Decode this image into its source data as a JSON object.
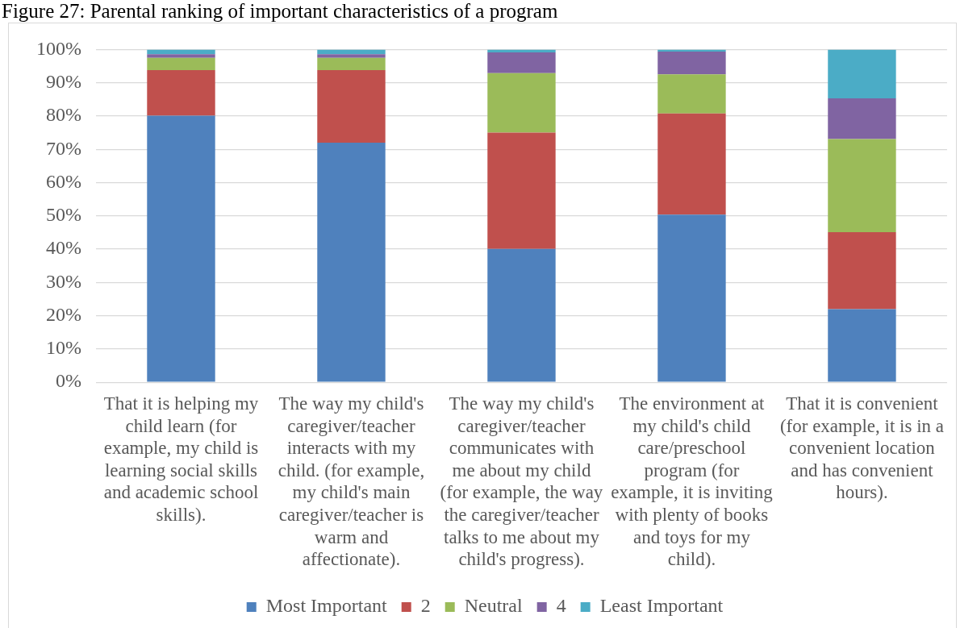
{
  "chart_data": {
    "type": "bar",
    "title": "Figure 27: Parental ranking of important characteristics of a program",
    "categories": [
      "That it is helping my child learn (for example, my child is learning social skills and academic school skills).",
      "The way my child's caregiver/teacher interacts with my child. (for example, my child's main caregiver/teacher is warm and affectionate).",
      "The way my child's caregiver/teacher communicates with me about my child (for example, the way the caregiver/teacher talks to me about my child's progress).",
      "The environment at my child's child care/preschool program (for example, it is inviting with plenty of books and toys for my child).",
      "That it is convenient (for example, it is in a convenient location and has convenient hours)."
    ],
    "series": [
      {
        "name": "Most Important",
        "color": "#4f81bd",
        "values": [
          80.1,
          72.0,
          40.1,
          50.4,
          22.0
        ]
      },
      {
        "name": "2",
        "color": "#c0504d",
        "values": [
          13.7,
          21.8,
          34.9,
          30.4,
          23.1
        ]
      },
      {
        "name": "Neutral",
        "color": "#9bbb59",
        "values": [
          3.7,
          3.7,
          17.9,
          11.7,
          28.0
        ]
      },
      {
        "name": "4",
        "color": "#8064a2",
        "values": [
          1.1,
          1.1,
          6.2,
          6.9,
          12.2
        ]
      },
      {
        "name": "Least Important",
        "color": "#4bacc6",
        "values": [
          1.4,
          1.4,
          0.9,
          0.6,
          14.7
        ]
      }
    ],
    "stacked": true,
    "ylim": [
      0,
      100
    ],
    "yticks": [
      {
        "value": 0,
        "label": "0%"
      },
      {
        "value": 10,
        "label": "10%"
      },
      {
        "value": 20,
        "label": "20%"
      },
      {
        "value": 30,
        "label": "30%"
      },
      {
        "value": 40,
        "label": "40%"
      },
      {
        "value": 50,
        "label": "50%"
      },
      {
        "value": 60,
        "label": "60%"
      },
      {
        "value": 70,
        "label": "70%"
      },
      {
        "value": 80,
        "label": "80%"
      },
      {
        "value": 90,
        "label": "90%"
      },
      {
        "value": 100,
        "label": "100%"
      }
    ],
    "grid": "y",
    "legend": "bottom"
  }
}
